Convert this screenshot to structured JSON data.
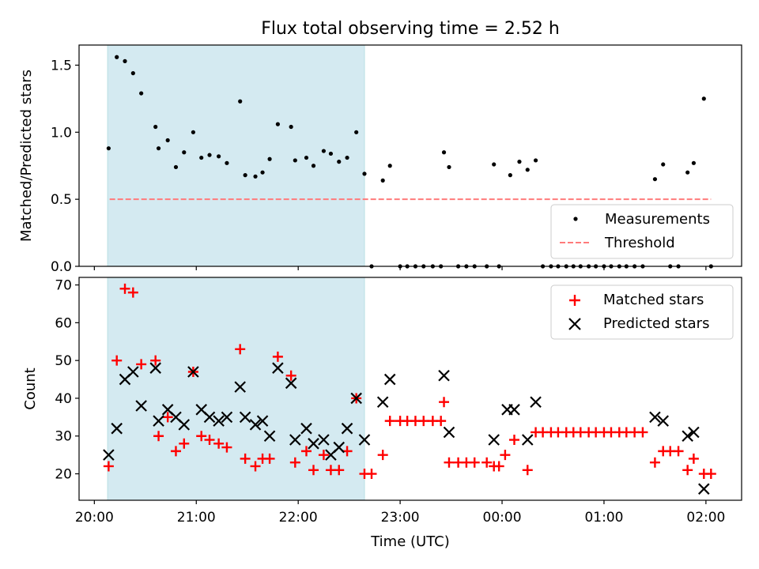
{
  "colors": {
    "shade": "#d4eaf1",
    "shade_edge": "#b9dfe3",
    "measurement": "#000000",
    "threshold": "#ff7b7b",
    "matched": "#ff0000",
    "predicted": "#000000"
  },
  "chart_data": [
    {
      "type": "scatter",
      "title": "Flux total observing time = 2.52 h",
      "ylabel": "Matched/Predicted stars",
      "xlim_hours": [
        19.85,
        26.35
      ],
      "ylim": [
        0,
        1.65
      ],
      "yticks": [
        0.0,
        0.5,
        1.0,
        1.5
      ],
      "ytick_labels": [
        "0.0",
        "0.5",
        "1.0",
        "1.5"
      ],
      "shaded_span_hours": [
        20.13,
        22.65
      ],
      "legend": {
        "placement": "lower-right",
        "entries": [
          "Measurements",
          "Threshold"
        ]
      },
      "threshold": {
        "name": "Threshold",
        "value": 0.5,
        "x_hours": [
          20.15,
          26.05
        ]
      },
      "series": [
        {
          "name": "Measurements",
          "points": [
            [
              20.14,
              0.88
            ],
            [
              20.22,
              1.56
            ],
            [
              20.3,
              1.53
            ],
            [
              20.38,
              1.44
            ],
            [
              20.46,
              1.29
            ],
            [
              20.6,
              1.04
            ],
            [
              20.63,
              0.88
            ],
            [
              20.72,
              0.94
            ],
            [
              20.8,
              0.74
            ],
            [
              20.88,
              0.85
            ],
            [
              20.97,
              1.0
            ],
            [
              21.05,
              0.81
            ],
            [
              21.13,
              0.83
            ],
            [
              21.22,
              0.82
            ],
            [
              21.3,
              0.77
            ],
            [
              21.43,
              1.23
            ],
            [
              21.48,
              0.68
            ],
            [
              21.58,
              0.67
            ],
            [
              21.65,
              0.7
            ],
            [
              21.72,
              0.8
            ],
            [
              21.8,
              1.06
            ],
            [
              21.93,
              1.04
            ],
            [
              21.97,
              0.79
            ],
            [
              22.08,
              0.81
            ],
            [
              22.15,
              0.75
            ],
            [
              22.25,
              0.86
            ],
            [
              22.32,
              0.84
            ],
            [
              22.4,
              0.78
            ],
            [
              22.48,
              0.81
            ],
            [
              22.57,
              1.0
            ],
            [
              22.65,
              0.69
            ],
            [
              22.72,
              0.0
            ],
            [
              22.83,
              0.64
            ],
            [
              22.9,
              0.75
            ],
            [
              23.0,
              0.0
            ],
            [
              23.07,
              0.0
            ],
            [
              23.15,
              0.0
            ],
            [
              23.23,
              0.0
            ],
            [
              23.32,
              0.0
            ],
            [
              23.4,
              0.0
            ],
            [
              23.43,
              0.85
            ],
            [
              23.48,
              0.74
            ],
            [
              23.57,
              0.0
            ],
            [
              23.65,
              0.0
            ],
            [
              23.73,
              0.0
            ],
            [
              23.85,
              0.0
            ],
            [
              23.92,
              0.76
            ],
            [
              23.97,
              0.0
            ],
            [
              24.08,
              0.68
            ],
            [
              24.17,
              0.78
            ],
            [
              24.25,
              0.72
            ],
            [
              24.33,
              0.79
            ],
            [
              24.4,
              0.0
            ],
            [
              24.48,
              0.0
            ],
            [
              24.55,
              0.0
            ],
            [
              24.63,
              0.0
            ],
            [
              24.7,
              0.0
            ],
            [
              24.77,
              0.0
            ],
            [
              24.85,
              0.0
            ],
            [
              24.92,
              0.0
            ],
            [
              25.0,
              0.0
            ],
            [
              25.07,
              0.0
            ],
            [
              25.15,
              0.0
            ],
            [
              25.22,
              0.0
            ],
            [
              25.3,
              0.0
            ],
            [
              25.38,
              0.0
            ],
            [
              25.5,
              0.65
            ],
            [
              25.58,
              0.76
            ],
            [
              25.65,
              0.0
            ],
            [
              25.73,
              0.0
            ],
            [
              25.82,
              0.7
            ],
            [
              25.88,
              0.77
            ],
            [
              25.98,
              1.25
            ],
            [
              26.05,
              0.0
            ]
          ]
        }
      ]
    },
    {
      "type": "scatter",
      "ylabel": "Count",
      "xlabel": "Time (UTC)",
      "xlim_hours": [
        19.85,
        26.35
      ],
      "xticks_hours": [
        20,
        21,
        22,
        23,
        24,
        25,
        26
      ],
      "xtick_labels": [
        "20:00",
        "21:00",
        "22:00",
        "23:00",
        "00:00",
        "01:00",
        "02:00"
      ],
      "ylim": [
        13,
        72
      ],
      "yticks": [
        20,
        30,
        40,
        50,
        60,
        70
      ],
      "ytick_labels": [
        "20",
        "30",
        "40",
        "50",
        "60",
        "70"
      ],
      "shaded_span_hours": [
        20.13,
        22.65
      ],
      "legend": {
        "placement": "upper-right",
        "entries": [
          "Matched stars",
          "Predicted stars"
        ]
      },
      "series": [
        {
          "name": "Matched stars",
          "marker": "plus",
          "points": [
            [
              20.14,
              22
            ],
            [
              20.22,
              50
            ],
            [
              20.3,
              69
            ],
            [
              20.38,
              68
            ],
            [
              20.46,
              49
            ],
            [
              20.6,
              50
            ],
            [
              20.63,
              30
            ],
            [
              20.72,
              35
            ],
            [
              20.8,
              26
            ],
            [
              20.88,
              28
            ],
            [
              20.97,
              47
            ],
            [
              21.05,
              30
            ],
            [
              21.13,
              29
            ],
            [
              21.22,
              28
            ],
            [
              21.3,
              27
            ],
            [
              21.43,
              53
            ],
            [
              21.48,
              24
            ],
            [
              21.58,
              22
            ],
            [
              21.65,
              24
            ],
            [
              21.72,
              24
            ],
            [
              21.8,
              51
            ],
            [
              21.93,
              46
            ],
            [
              21.97,
              23
            ],
            [
              22.08,
              26
            ],
            [
              22.15,
              21
            ],
            [
              22.25,
              25
            ],
            [
              22.32,
              21
            ],
            [
              22.4,
              21
            ],
            [
              22.48,
              26
            ],
            [
              22.57,
              40
            ],
            [
              22.65,
              20
            ],
            [
              22.72,
              20
            ],
            [
              22.83,
              25
            ],
            [
              22.9,
              34
            ],
            [
              23.0,
              34
            ],
            [
              23.07,
              34
            ],
            [
              23.15,
              34
            ],
            [
              23.23,
              34
            ],
            [
              23.32,
              34
            ],
            [
              23.4,
              34
            ],
            [
              23.43,
              39
            ],
            [
              23.48,
              23
            ],
            [
              23.57,
              23
            ],
            [
              23.65,
              23
            ],
            [
              23.73,
              23
            ],
            [
              23.85,
              23
            ],
            [
              23.92,
              22
            ],
            [
              23.97,
              22
            ],
            [
              24.03,
              25
            ],
            [
              24.12,
              29
            ],
            [
              24.25,
              21
            ],
            [
              24.33,
              31
            ],
            [
              24.4,
              31
            ],
            [
              24.48,
              31
            ],
            [
              24.55,
              31
            ],
            [
              24.63,
              31
            ],
            [
              24.7,
              31
            ],
            [
              24.77,
              31
            ],
            [
              24.85,
              31
            ],
            [
              24.92,
              31
            ],
            [
              25.0,
              31
            ],
            [
              25.07,
              31
            ],
            [
              25.15,
              31
            ],
            [
              25.22,
              31
            ],
            [
              25.3,
              31
            ],
            [
              25.38,
              31
            ],
            [
              25.5,
              23
            ],
            [
              25.58,
              26
            ],
            [
              25.65,
              26
            ],
            [
              25.73,
              26
            ],
            [
              25.82,
              21
            ],
            [
              25.88,
              24
            ],
            [
              25.98,
              20
            ],
            [
              26.05,
              20
            ]
          ]
        },
        {
          "name": "Predicted stars",
          "marker": "x",
          "points": [
            [
              20.14,
              25
            ],
            [
              20.22,
              32
            ],
            [
              20.3,
              45
            ],
            [
              20.38,
              47
            ],
            [
              20.46,
              38
            ],
            [
              20.6,
              48
            ],
            [
              20.63,
              34
            ],
            [
              20.72,
              37
            ],
            [
              20.8,
              35
            ],
            [
              20.88,
              33
            ],
            [
              20.97,
              47
            ],
            [
              21.05,
              37
            ],
            [
              21.13,
              35
            ],
            [
              21.22,
              34
            ],
            [
              21.3,
              35
            ],
            [
              21.43,
              43
            ],
            [
              21.48,
              35
            ],
            [
              21.58,
              33
            ],
            [
              21.65,
              34
            ],
            [
              21.72,
              30
            ],
            [
              21.8,
              48
            ],
            [
              21.93,
              44
            ],
            [
              21.97,
              29
            ],
            [
              22.08,
              32
            ],
            [
              22.15,
              28
            ],
            [
              22.25,
              29
            ],
            [
              22.32,
              25
            ],
            [
              22.4,
              27
            ],
            [
              22.48,
              32
            ],
            [
              22.57,
              40
            ],
            [
              22.65,
              29
            ],
            [
              22.83,
              39
            ],
            [
              22.9,
              45
            ],
            [
              23.43,
              46
            ],
            [
              23.48,
              31
            ],
            [
              23.92,
              29
            ],
            [
              24.05,
              37
            ],
            [
              24.12,
              37
            ],
            [
              24.25,
              29
            ],
            [
              24.33,
              39
            ],
            [
              25.5,
              35
            ],
            [
              25.58,
              34
            ],
            [
              25.82,
              30
            ],
            [
              25.88,
              31
            ],
            [
              25.98,
              16
            ]
          ]
        }
      ]
    }
  ]
}
